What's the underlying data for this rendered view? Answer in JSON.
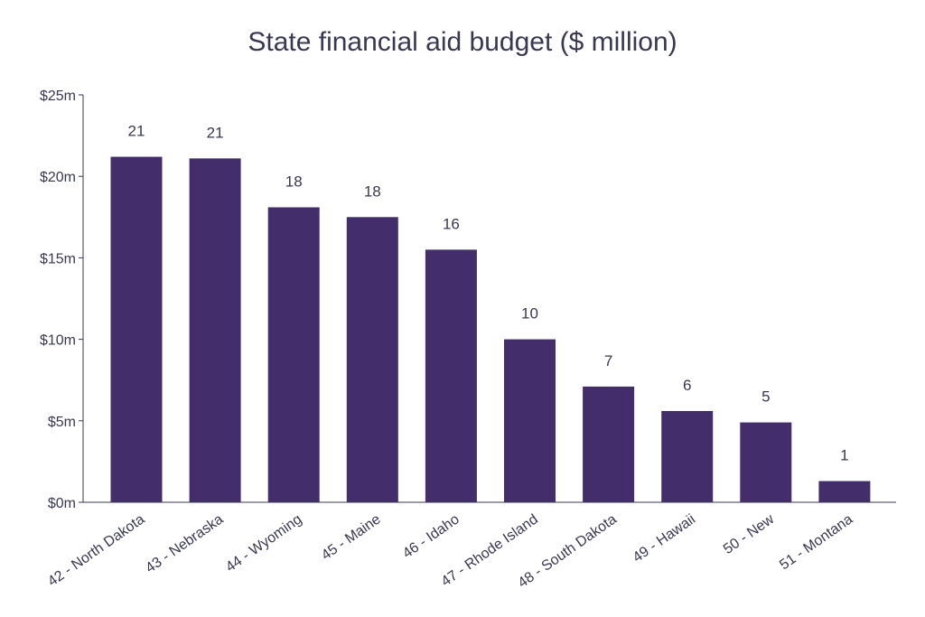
{
  "chart_data": {
    "type": "bar",
    "title": "State financial aid budget ($ million)",
    "xlabel": "",
    "ylabel": "",
    "categories": [
      "42 - North Dakota",
      "43 - Nebraska",
      "44 - Wyoming",
      "45 - Maine",
      "46 - Idaho",
      "47 - Rhode Island",
      "48 - South Dakota",
      "49 - Hawaii",
      "50 - New",
      "51 - Montana"
    ],
    "values": [
      21.2,
      21.1,
      18.1,
      17.5,
      15.5,
      10.0,
      7.1,
      5.6,
      4.9,
      1.3
    ],
    "data_labels": [
      "21",
      "21",
      "18",
      "18",
      "16",
      "10",
      "7",
      "6",
      "5",
      "1"
    ],
    "ylim": [
      0,
      25
    ],
    "yticks": [
      0,
      5,
      10,
      15,
      20,
      25
    ],
    "ytick_labels": [
      "$0m",
      "$5m",
      "$10m",
      "$15m",
      "$20m",
      "$25m"
    ],
    "grid": false,
    "bar_color": "#432e6b",
    "text_color": "#3a3850",
    "axis_color": "#3a3850"
  }
}
